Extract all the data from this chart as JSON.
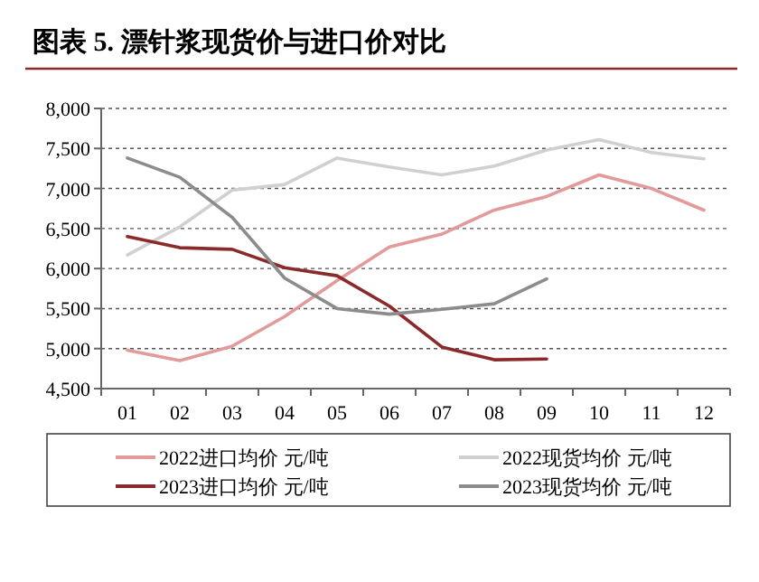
{
  "chart_data": {
    "type": "line",
    "title": "图表 5. 漂针浆现货价与进口价对比",
    "categories": [
      "01",
      "02",
      "03",
      "04",
      "05",
      "06",
      "07",
      "08",
      "09",
      "10",
      "11",
      "12"
    ],
    "series": [
      {
        "name": "2022进口均价 元/吨",
        "color": "#e29a9a",
        "values": [
          4980,
          4850,
          5030,
          5400,
          5850,
          6270,
          6430,
          6730,
          6900,
          7170,
          7000,
          6730
        ]
      },
      {
        "name": "2022现货均价 元/吨",
        "color": "#d0d0d0",
        "values": [
          6170,
          6520,
          6980,
          7050,
          7380,
          7270,
          7170,
          7280,
          7480,
          7610,
          7450,
          7370
        ]
      },
      {
        "name": "2023进口均价 元/吨",
        "color": "#8b2a2a",
        "values": [
          6400,
          6260,
          6240,
          6010,
          5910,
          5530,
          5020,
          4860,
          4870,
          null,
          null,
          null
        ]
      },
      {
        "name": "2023现货均价 元/吨",
        "color": "#8c8c8c",
        "values": [
          7380,
          7140,
          6640,
          5880,
          5500,
          5430,
          5490,
          5560,
          5870,
          null,
          null,
          null
        ]
      }
    ],
    "ylim": [
      4500,
      8000
    ],
    "yticks": [
      {
        "value": 4500,
        "label": "4,500"
      },
      {
        "value": 5000,
        "label": "5,000"
      },
      {
        "value": 5500,
        "label": "5,500"
      },
      {
        "value": 6000,
        "label": "6,000"
      },
      {
        "value": 6500,
        "label": "6,500"
      },
      {
        "value": 7000,
        "label": "7,000"
      },
      {
        "value": 7500,
        "label": "7,500"
      },
      {
        "value": 8000,
        "label": "8,000"
      }
    ],
    "grid": "y",
    "legend": "bottom",
    "line_style": "solid",
    "marker": "none"
  }
}
